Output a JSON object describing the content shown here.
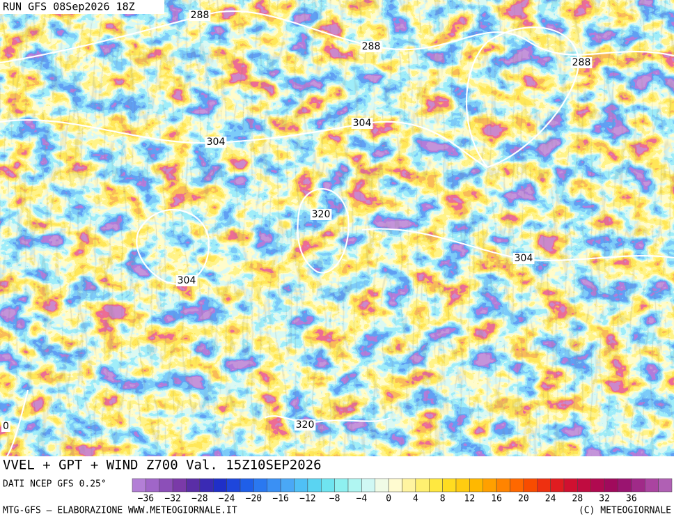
{
  "header": {
    "run": "RUN GFS 08Sep2026 18Z"
  },
  "contour_labels": [
    "288",
    "288",
    "288",
    "304",
    "304",
    "320",
    "304",
    "304",
    "320",
    "0"
  ],
  "title": "VVEL + GPT + WIND Z700 Val. 15Z10SEP2026",
  "source": "DATI NCEP GFS 0.25°",
  "colorbar": {
    "colors": [
      "#b37fd6",
      "#a066c8",
      "#8c4fb8",
      "#7a3aa8",
      "#5a2ea6",
      "#3a2ab4",
      "#1f2fc8",
      "#1e46dc",
      "#1f5fe8",
      "#2a78f0",
      "#3a90f4",
      "#4aa8f6",
      "#4fc0f6",
      "#5ad4f2",
      "#6fe4f0",
      "#8ef0f0",
      "#b0f6f2",
      "#d0f8f4",
      "#f0fbe6",
      "#fffbd0",
      "#fff4a0",
      "#fff070",
      "#ffe840",
      "#ffdc20",
      "#ffcc10",
      "#ffb800",
      "#ffa000",
      "#ff8400",
      "#ff6800",
      "#f84c00",
      "#ee3010",
      "#e01c20",
      "#d01030",
      "#c00c40",
      "#b00a50",
      "#a00a5c",
      "#9a1470",
      "#a02a88",
      "#aa44a0",
      "#b060b4"
    ],
    "ticks": [
      "−36",
      "−32",
      "−28",
      "−24",
      "−20",
      "−16",
      "−12",
      "−8",
      "−4",
      "0",
      "4",
      "8",
      "12",
      "16",
      "20",
      "24",
      "28",
      "32",
      "36"
    ]
  },
  "footer": {
    "left": "MTG-GFS — ELABORAZIONE WWW.METEOGIORNALE.IT",
    "right": "(C) METEOGIORNALE"
  }
}
